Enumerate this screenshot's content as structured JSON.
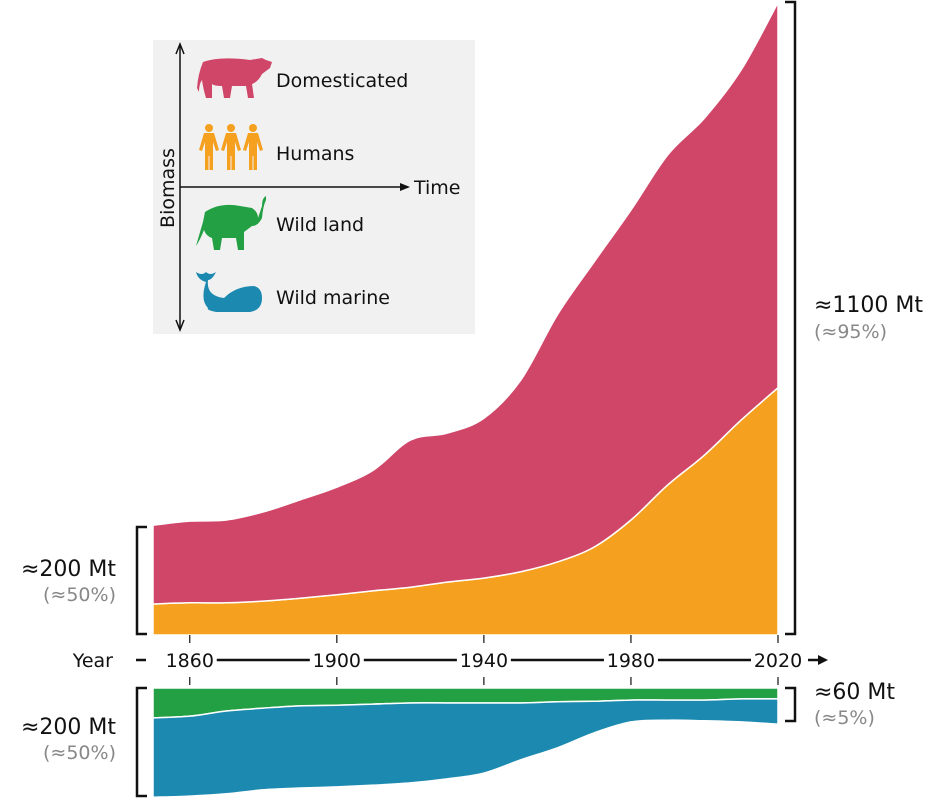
{
  "chart_data": {
    "type": "area",
    "subtype": "stacked, two panels sharing the year axis (the lower panel grows downward)",
    "xlabel": "Year",
    "x": [
      1850,
      1860,
      1870,
      1880,
      1890,
      1900,
      1910,
      1920,
      1930,
      1940,
      1950,
      1960,
      1970,
      1980,
      1990,
      2000,
      2010,
      2020
    ],
    "xticks": [
      "1860",
      "1900",
      "1940",
      "1980",
      "2020"
    ],
    "xlim": [
      1850,
      2020
    ],
    "units": "Mt",
    "grid": false,
    "panels": [
      {
        "position": "top",
        "stack_order": [
          "Humans",
          "Domesticated"
        ],
        "series": [
          {
            "name": "Humans",
            "color": "#f5a01f",
            "values": [
              54,
              56,
              56,
              59,
              64,
              70,
              77,
              83,
              92,
              99,
              110,
              127,
              153,
              200,
              261,
              313,
              374,
              430
            ]
          },
          {
            "name": "Domesticated",
            "color": "#d04668",
            "values": [
              137,
              142,
              144,
              155,
              171,
              187,
              210,
              256,
              259,
              278,
              333,
              430,
              496,
              539,
              574,
              586,
              609,
              670
            ]
          }
        ],
        "left_annotation": {
          "value": "≈200 Mt",
          "share": "(≈50%)"
        },
        "right_annotation": {
          "value": "≈1100 Mt",
          "share": "(≈95%)"
        }
      },
      {
        "position": "bottom",
        "stack_order": [
          "Wild land",
          "Wild marine"
        ],
        "series": [
          {
            "name": "Wild land",
            "color": "#23a043",
            "values": [
              52,
              49,
              40,
              35,
              31,
              30,
              28,
              26,
              26,
              26,
              26,
              24,
              23,
              21,
              21,
              21,
              19,
              19
            ]
          },
          {
            "name": "Wild marine",
            "color": "#1b89b0",
            "values": [
              138,
              139,
              144,
              142,
              143,
              142,
              141,
              139,
              132,
              122,
              99,
              80,
              55,
              38,
              35,
              36,
              40,
              44
            ]
          }
        ],
        "left_annotation": {
          "value": "≈200 Mt",
          "share": "(≈50%)"
        },
        "right_annotation": {
          "value": "≈60 Mt",
          "share": "(≈5%)"
        }
      }
    ],
    "legend": {
      "placement": "top-left",
      "x_axis_label": "Time",
      "y_axis_label": "Biomass",
      "items": [
        {
          "label": "Domesticated",
          "icon": "cow-icon",
          "color": "#d04668"
        },
        {
          "label": "Humans",
          "icon": "people-icon",
          "color": "#f5a01f"
        },
        {
          "label": "Wild land",
          "icon": "elephant-icon",
          "color": "#23a043"
        },
        {
          "label": "Wild marine",
          "icon": "whale-icon",
          "color": "#1b89b0"
        }
      ]
    }
  }
}
